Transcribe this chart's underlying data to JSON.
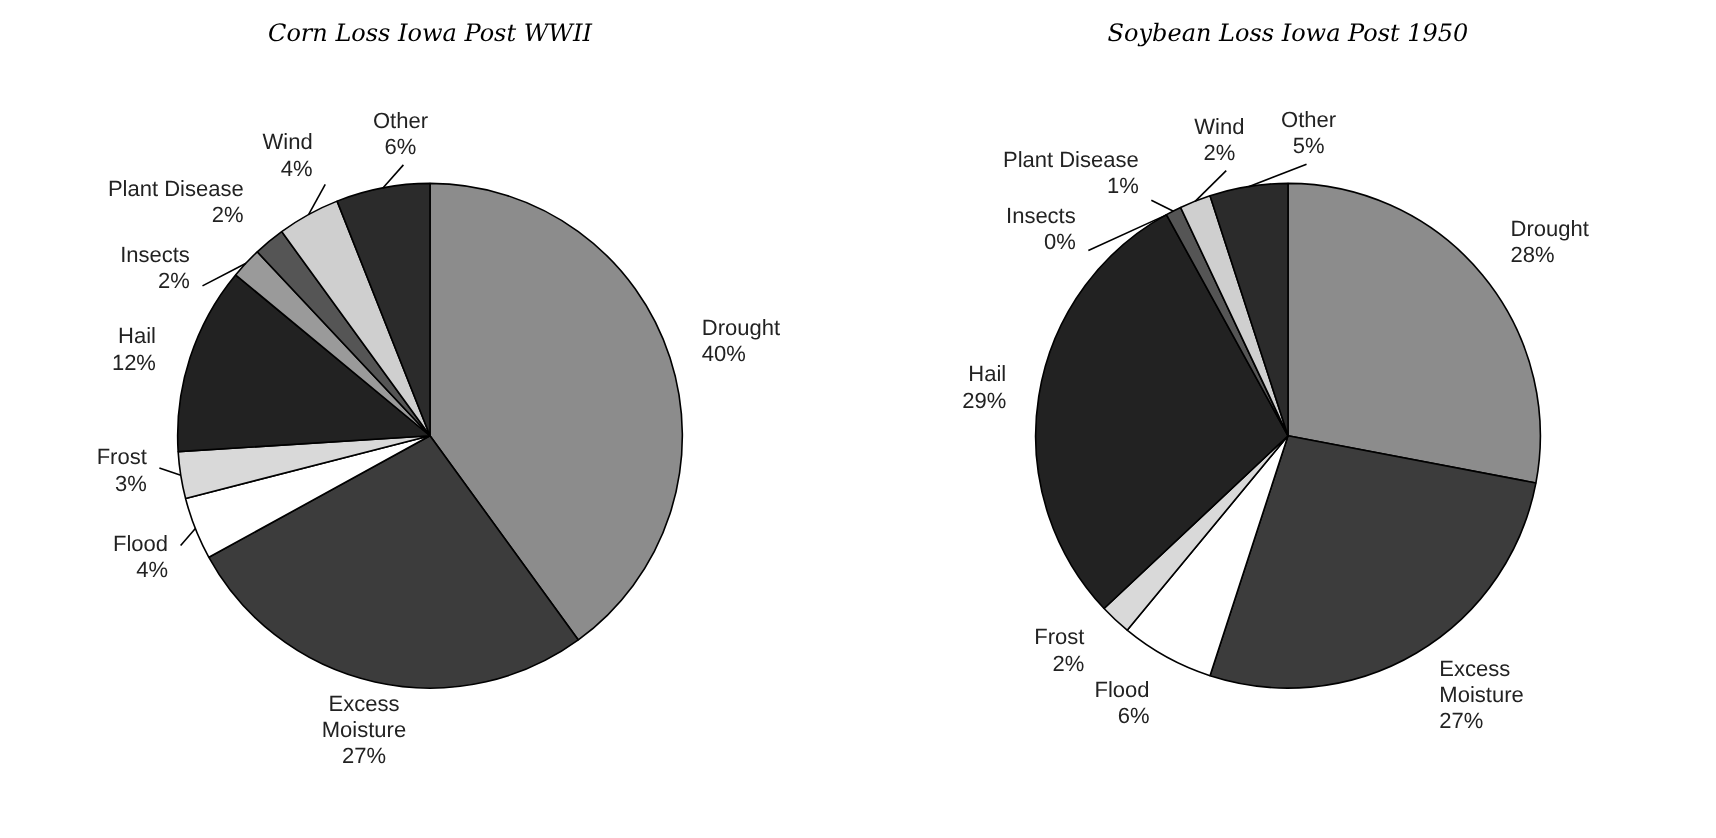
{
  "chart_data": [
    {
      "type": "pie",
      "title": "Corn Loss Iowa Post WWII",
      "categories": [
        "Drought",
        "Excess\nMoisture",
        "Flood",
        "Frost",
        "Hail",
        "Insects",
        "Plant Disease",
        "Wind",
        "Other"
      ],
      "values": [
        40,
        27,
        4,
        3,
        12,
        2,
        2,
        4,
        6
      ],
      "value_labels": [
        "40%",
        "27%",
        "4%",
        "3%",
        "12%",
        "2%",
        "2%",
        "4%",
        "6%"
      ],
      "colors": [
        "#8c8c8c",
        "#3c3c3c",
        "#ffffff",
        "#d9d9d9",
        "#222222",
        "#9a9a9a",
        "#555555",
        "#cfcfcf",
        "#2b2b2b"
      ]
    },
    {
      "type": "pie",
      "title": "Soybean Loss Iowa Post 1950",
      "categories": [
        "Drought",
        "Excess\nMoisture",
        "Flood",
        "Frost",
        "Hail",
        "Insects",
        "Plant Disease",
        "Wind",
        "Other"
      ],
      "values": [
        28,
        27,
        6,
        2,
        29,
        0,
        1,
        2,
        5
      ],
      "value_labels": [
        "28%",
        "27%",
        "6%",
        "2%",
        "29%",
        "0%",
        "1%",
        "2%",
        "5%"
      ],
      "colors": [
        "#8c8c8c",
        "#3c3c3c",
        "#ffffff",
        "#d9d9d9",
        "#222222",
        "#9a9a9a",
        "#555555",
        "#cfcfcf",
        "#2b2b2b"
      ]
    }
  ]
}
